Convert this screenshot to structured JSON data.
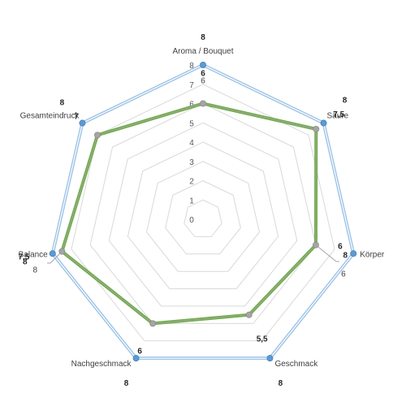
{
  "chart_data": {
    "type": "radar",
    "title": "",
    "categories": [
      "Aroma / Bouquet",
      "Säure",
      "Körper",
      "Geschmack",
      "Nachgeschmack",
      "Balance",
      "Gesamteindruck"
    ],
    "axis": {
      "min": 0,
      "max": 8,
      "step": 1,
      "tick_labels": [
        "0",
        "1",
        "2",
        "3",
        "4",
        "5",
        "6",
        "7",
        "8"
      ]
    },
    "grid": true,
    "legend": "none",
    "series": [
      {
        "values": [
          8,
          8,
          8,
          8,
          8,
          8,
          8
        ],
        "labels": [
          "8",
          "8",
          "8",
          "8",
          "8",
          "8",
          "8"
        ],
        "color": "#5b9bd5",
        "line_color": "#9dc3e6"
      },
      {
        "values": [
          6,
          7.5,
          6,
          5.5,
          6,
          7.5,
          7
        ],
        "labels": [
          "6",
          "7,5",
          "6",
          "5,5",
          "6",
          "7,5",
          "7"
        ],
        "color": "#70ad47",
        "line_color": "#70ad47"
      },
      {
        "values": [
          6,
          7.5,
          6,
          5.5,
          6,
          7.5,
          7
        ],
        "labels": [
          "6",
          "",
          "6",
          "",
          "",
          "8",
          ""
        ],
        "color": "#a5a5a5",
        "line_color": "#a5a5a5"
      }
    ]
  }
}
